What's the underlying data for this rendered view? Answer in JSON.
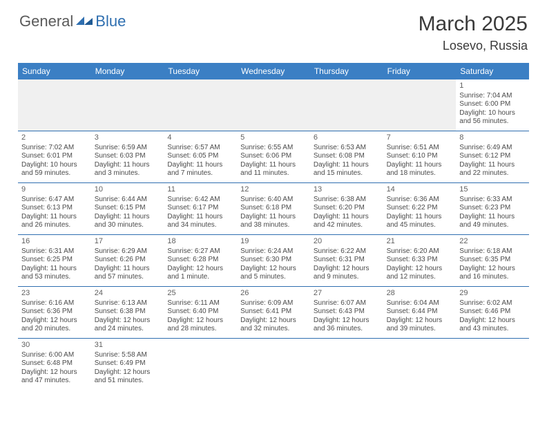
{
  "logo": {
    "text_left": "General",
    "text_right": "Blue"
  },
  "title": "March 2025",
  "location": "Losevo, Russia",
  "colors": {
    "header_blue": "#3b7fc4",
    "accent_blue": "#2f6fb0",
    "text_gray": "#4a4a4a",
    "empty_bg": "#f0f0f0"
  },
  "daynames": [
    "Sunday",
    "Monday",
    "Tuesday",
    "Wednesday",
    "Thursday",
    "Friday",
    "Saturday"
  ],
  "weeks": [
    [
      {
        "empty": true
      },
      {
        "empty": true
      },
      {
        "empty": true
      },
      {
        "empty": true
      },
      {
        "empty": true
      },
      {
        "empty": true
      },
      {
        "n": "1",
        "sr": "Sunrise: 7:04 AM",
        "ss": "Sunset: 6:00 PM",
        "dl": "Daylight: 10 hours and 56 minutes."
      }
    ],
    [
      {
        "n": "2",
        "sr": "Sunrise: 7:02 AM",
        "ss": "Sunset: 6:01 PM",
        "dl": "Daylight: 10 hours and 59 minutes."
      },
      {
        "n": "3",
        "sr": "Sunrise: 6:59 AM",
        "ss": "Sunset: 6:03 PM",
        "dl": "Daylight: 11 hours and 3 minutes."
      },
      {
        "n": "4",
        "sr": "Sunrise: 6:57 AM",
        "ss": "Sunset: 6:05 PM",
        "dl": "Daylight: 11 hours and 7 minutes."
      },
      {
        "n": "5",
        "sr": "Sunrise: 6:55 AM",
        "ss": "Sunset: 6:06 PM",
        "dl": "Daylight: 11 hours and 11 minutes."
      },
      {
        "n": "6",
        "sr": "Sunrise: 6:53 AM",
        "ss": "Sunset: 6:08 PM",
        "dl": "Daylight: 11 hours and 15 minutes."
      },
      {
        "n": "7",
        "sr": "Sunrise: 6:51 AM",
        "ss": "Sunset: 6:10 PM",
        "dl": "Daylight: 11 hours and 18 minutes."
      },
      {
        "n": "8",
        "sr": "Sunrise: 6:49 AM",
        "ss": "Sunset: 6:12 PM",
        "dl": "Daylight: 11 hours and 22 minutes."
      }
    ],
    [
      {
        "n": "9",
        "sr": "Sunrise: 6:47 AM",
        "ss": "Sunset: 6:13 PM",
        "dl": "Daylight: 11 hours and 26 minutes."
      },
      {
        "n": "10",
        "sr": "Sunrise: 6:44 AM",
        "ss": "Sunset: 6:15 PM",
        "dl": "Daylight: 11 hours and 30 minutes."
      },
      {
        "n": "11",
        "sr": "Sunrise: 6:42 AM",
        "ss": "Sunset: 6:17 PM",
        "dl": "Daylight: 11 hours and 34 minutes."
      },
      {
        "n": "12",
        "sr": "Sunrise: 6:40 AM",
        "ss": "Sunset: 6:18 PM",
        "dl": "Daylight: 11 hours and 38 minutes."
      },
      {
        "n": "13",
        "sr": "Sunrise: 6:38 AM",
        "ss": "Sunset: 6:20 PM",
        "dl": "Daylight: 11 hours and 42 minutes."
      },
      {
        "n": "14",
        "sr": "Sunrise: 6:36 AM",
        "ss": "Sunset: 6:22 PM",
        "dl": "Daylight: 11 hours and 45 minutes."
      },
      {
        "n": "15",
        "sr": "Sunrise: 6:33 AM",
        "ss": "Sunset: 6:23 PM",
        "dl": "Daylight: 11 hours and 49 minutes."
      }
    ],
    [
      {
        "n": "16",
        "sr": "Sunrise: 6:31 AM",
        "ss": "Sunset: 6:25 PM",
        "dl": "Daylight: 11 hours and 53 minutes."
      },
      {
        "n": "17",
        "sr": "Sunrise: 6:29 AM",
        "ss": "Sunset: 6:26 PM",
        "dl": "Daylight: 11 hours and 57 minutes."
      },
      {
        "n": "18",
        "sr": "Sunrise: 6:27 AM",
        "ss": "Sunset: 6:28 PM",
        "dl": "Daylight: 12 hours and 1 minute."
      },
      {
        "n": "19",
        "sr": "Sunrise: 6:24 AM",
        "ss": "Sunset: 6:30 PM",
        "dl": "Daylight: 12 hours and 5 minutes."
      },
      {
        "n": "20",
        "sr": "Sunrise: 6:22 AM",
        "ss": "Sunset: 6:31 PM",
        "dl": "Daylight: 12 hours and 9 minutes."
      },
      {
        "n": "21",
        "sr": "Sunrise: 6:20 AM",
        "ss": "Sunset: 6:33 PM",
        "dl": "Daylight: 12 hours and 12 minutes."
      },
      {
        "n": "22",
        "sr": "Sunrise: 6:18 AM",
        "ss": "Sunset: 6:35 PM",
        "dl": "Daylight: 12 hours and 16 minutes."
      }
    ],
    [
      {
        "n": "23",
        "sr": "Sunrise: 6:16 AM",
        "ss": "Sunset: 6:36 PM",
        "dl": "Daylight: 12 hours and 20 minutes."
      },
      {
        "n": "24",
        "sr": "Sunrise: 6:13 AM",
        "ss": "Sunset: 6:38 PM",
        "dl": "Daylight: 12 hours and 24 minutes."
      },
      {
        "n": "25",
        "sr": "Sunrise: 6:11 AM",
        "ss": "Sunset: 6:40 PM",
        "dl": "Daylight: 12 hours and 28 minutes."
      },
      {
        "n": "26",
        "sr": "Sunrise: 6:09 AM",
        "ss": "Sunset: 6:41 PM",
        "dl": "Daylight: 12 hours and 32 minutes."
      },
      {
        "n": "27",
        "sr": "Sunrise: 6:07 AM",
        "ss": "Sunset: 6:43 PM",
        "dl": "Daylight: 12 hours and 36 minutes."
      },
      {
        "n": "28",
        "sr": "Sunrise: 6:04 AM",
        "ss": "Sunset: 6:44 PM",
        "dl": "Daylight: 12 hours and 39 minutes."
      },
      {
        "n": "29",
        "sr": "Sunrise: 6:02 AM",
        "ss": "Sunset: 6:46 PM",
        "dl": "Daylight: 12 hours and 43 minutes."
      }
    ],
    [
      {
        "n": "30",
        "sr": "Sunrise: 6:00 AM",
        "ss": "Sunset: 6:48 PM",
        "dl": "Daylight: 12 hours and 47 minutes."
      },
      {
        "n": "31",
        "sr": "Sunrise: 5:58 AM",
        "ss": "Sunset: 6:49 PM",
        "dl": "Daylight: 12 hours and 51 minutes."
      },
      {
        "empty": true,
        "trailing": true
      },
      {
        "empty": true,
        "trailing": true
      },
      {
        "empty": true,
        "trailing": true
      },
      {
        "empty": true,
        "trailing": true
      },
      {
        "empty": true,
        "trailing": true
      }
    ]
  ]
}
